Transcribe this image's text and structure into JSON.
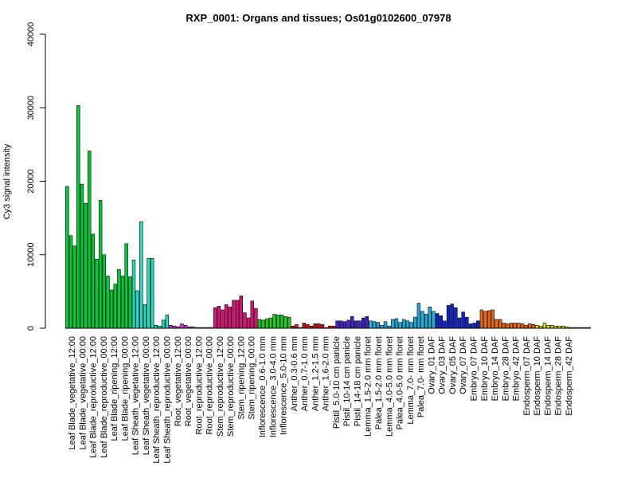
{
  "chart_data": {
    "type": "bar",
    "title": "RXP_0001: Organs and tissues; Os01g0102600_07978",
    "xlabel": "",
    "ylabel": "Cy3 signal intensity",
    "ylim": [
      0,
      40000
    ],
    "yticks": [
      "0",
      "10000",
      "20000",
      "30000",
      "40000"
    ],
    "groups": [
      {
        "color": "#00cc33",
        "values": [
          19300,
          12600,
          11200,
          30300,
          19600,
          17000,
          24100,
          12800,
          9400,
          17400,
          10000,
          7100,
          5200,
          6000,
          8000,
          7100,
          11500,
          7000
        ]
      },
      {
        "color": "#22ddbb",
        "values": [
          9300,
          5100,
          14500,
          3200,
          9500,
          9500,
          400,
          300,
          1100,
          1800
        ]
      },
      {
        "color": "#cc33cc",
        "values": [
          400,
          300,
          200,
          600,
          400,
          200,
          200,
          100,
          100,
          100,
          100,
          100
        ]
      },
      {
        "color": "#dd1177",
        "values": [
          2800,
          3000,
          2500,
          3200,
          2900,
          3800,
          3800,
          4400,
          2100,
          1400,
          3700,
          2700
        ]
      },
      {
        "color": "#22cc22",
        "values": [
          1200,
          1100,
          1300,
          1400,
          1900,
          1800,
          1800,
          1600,
          1500
        ]
      },
      {
        "color": "#cc1111",
        "values": [
          300,
          500,
          100,
          700,
          500,
          300,
          600,
          600,
          500,
          100,
          300,
          300
        ]
      },
      {
        "color": "#4422cc",
        "values": [
          1000,
          1000,
          900,
          1100,
          1600,
          1000,
          1000,
          1400,
          1600
        ]
      },
      {
        "color": "#22aadd",
        "values": [
          1000,
          900,
          800,
          400,
          900,
          300,
          1200,
          1300,
          800,
          1200,
          1000,
          800,
          1500,
          3400,
          2300,
          1900,
          2900,
          2300
        ]
      },
      {
        "color": "#1122cc",
        "values": [
          2000,
          1700,
          1000,
          3100,
          3300,
          2800,
          1400,
          2200,
          1500,
          600,
          700,
          1000
        ]
      },
      {
        "color": "#ee6611",
        "values": [
          2500,
          2300,
          2400,
          2500,
          1200,
          1200,
          700,
          600,
          700,
          700,
          700,
          600,
          400,
          600,
          500
        ]
      },
      {
        "color": "#dddd22",
        "values": [
          400,
          300,
          700,
          400,
          400,
          300,
          300,
          300,
          200
        ]
      },
      {
        "color": "#999966",
        "values": [
          100,
          100,
          100,
          100,
          100,
          100
        ]
      }
    ],
    "categories": [
      "Leaf Blade_vegetative_12:00",
      "Leaf Blade_vegetative_00:00",
      "Leaf Blade_reproductive_12:00",
      "Leaf Blade_reproductive_00:00",
      "Leaf Blade_ripening_12:00",
      "Leaf Blade_ripening_00:00",
      "Leaf Sheath_vegetative_12:00",
      "Leaf Sheath_vegetative_00:00",
      "Leaf Sheath_reproductive_12:00",
      "Leaf Sheath_reproductive_00:00",
      "Root_vegetative_12:00",
      "Root_vegetative_00:00",
      "Root_reproductive_12:00",
      "Root_reproductive_00:00",
      "Stem_reproductive_12:00",
      "Stem_reproductive_00:00",
      "Stem_ripening_12:00",
      "Stem_ripening_00:00",
      "Inflorescence_0.6-1.0 mm",
      "Inflorescence_3.0-4.0 mm",
      "Inflorescence_5.0-10 mm",
      "Anther_0.3-0.6 mm",
      "Anther_0.7-1.0 mm",
      "Anther_1.2-1.5 mm",
      "Anther_1.6-2.0 mm",
      "Pistil_5.0-10 cm panicle",
      "Pistil_10-14 cm panicle",
      "Pistil_14-18 cm panicle",
      "Lemma_1.5-2.0 mm floret",
      "Palea_1.5-2.0 mm floret",
      "Lemma_4.0-5.0 mm floret",
      "Palea_4.0-5.0 mm floret",
      "Lemma_7.0- mm floret",
      "Palea_7.0- mm floret",
      "Ovary_01 DAF",
      "Ovary_03 DAF",
      "Ovary_05 DAF",
      "Ovary_07 DAF",
      "Embryo_07 DAF",
      "Embryo_10 DAF",
      "Embryo_14 DAF",
      "Embryo_28 DAF",
      "Embryo_42 DAF",
      "Endosperm_07 DAF",
      "Endosperm_10 DAF",
      "Endosperm_14 DAF",
      "Endosperm_28 DAF",
      "Endosperm_42 DAF"
    ],
    "grid": false,
    "legend": "none"
  }
}
